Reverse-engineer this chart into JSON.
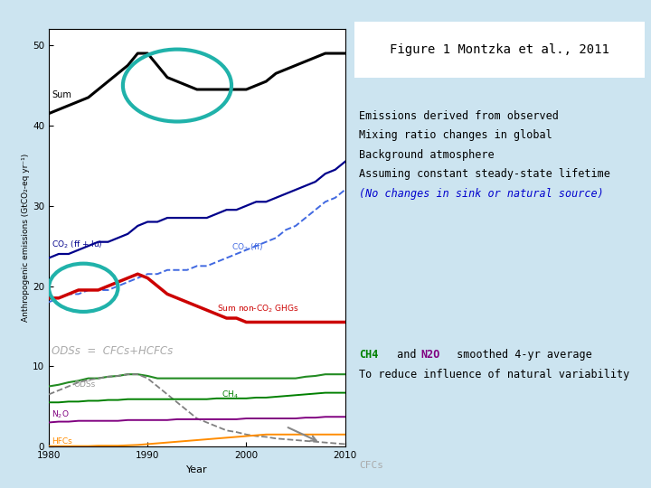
{
  "title": "Figure 1 Montzka et al., 2011",
  "bg_color": "#cce4f0",
  "plot_bg": "#ffffff",
  "years": [
    1980,
    1981,
    1982,
    1983,
    1984,
    1985,
    1986,
    1987,
    1988,
    1989,
    1990,
    1991,
    1992,
    1993,
    1994,
    1995,
    1996,
    1997,
    1998,
    1999,
    2000,
    2001,
    2002,
    2003,
    2004,
    2005,
    2006,
    2007,
    2008,
    2009,
    2010
  ],
  "sum_vals": [
    41.5,
    42.0,
    42.5,
    43.0,
    43.5,
    44.5,
    45.5,
    46.5,
    47.5,
    49.0,
    49.0,
    47.5,
    46.0,
    45.5,
    45.0,
    44.5,
    44.5,
    44.5,
    44.5,
    44.5,
    44.5,
    45.0,
    45.5,
    46.5,
    47.0,
    47.5,
    48.0,
    48.5,
    49.0,
    49.0,
    49.0
  ],
  "co2_ff_lu_vals": [
    23.5,
    24.0,
    24.0,
    24.5,
    25.0,
    25.5,
    25.5,
    26.0,
    26.5,
    27.5,
    28.0,
    28.0,
    28.5,
    28.5,
    28.5,
    28.5,
    28.5,
    29.0,
    29.5,
    29.5,
    30.0,
    30.5,
    30.5,
    31.0,
    31.5,
    32.0,
    32.5,
    33.0,
    34.0,
    34.5,
    35.5
  ],
  "co2_ff_vals": [
    18.0,
    18.5,
    19.0,
    19.0,
    19.5,
    19.5,
    19.5,
    20.0,
    20.5,
    21.0,
    21.5,
    21.5,
    22.0,
    22.0,
    22.0,
    22.5,
    22.5,
    23.0,
    23.5,
    24.0,
    24.5,
    25.0,
    25.5,
    26.0,
    27.0,
    27.5,
    28.5,
    29.5,
    30.5,
    31.0,
    32.0
  ],
  "sum_nonco2_vals": [
    18.5,
    18.5,
    19.0,
    19.5,
    19.5,
    19.5,
    20.0,
    20.5,
    21.0,
    21.5,
    21.0,
    20.0,
    19.0,
    18.5,
    18.0,
    17.5,
    17.0,
    16.5,
    16.0,
    16.0,
    15.5,
    15.5,
    15.5,
    15.5,
    15.5,
    15.5,
    15.5,
    15.5,
    15.5,
    15.5,
    15.5
  ],
  "ods_vals": [
    7.5,
    7.7,
    8.0,
    8.2,
    8.5,
    8.5,
    8.7,
    8.8,
    9.0,
    9.0,
    8.8,
    8.5,
    8.5,
    8.5,
    8.5,
    8.5,
    8.5,
    8.5,
    8.5,
    8.5,
    8.5,
    8.5,
    8.5,
    8.5,
    8.5,
    8.5,
    8.7,
    8.8,
    9.0,
    9.0,
    9.0
  ],
  "cfcs_vals": [
    6.5,
    7.0,
    7.5,
    8.0,
    8.3,
    8.5,
    8.7,
    8.8,
    9.0,
    9.0,
    8.5,
    7.5,
    6.5,
    5.5,
    4.5,
    3.5,
    3.0,
    2.5,
    2.0,
    1.8,
    1.5,
    1.3,
    1.2,
    1.0,
    0.9,
    0.8,
    0.7,
    0.6,
    0.5,
    0.4,
    0.3
  ],
  "ch4_vals": [
    5.5,
    5.5,
    5.6,
    5.6,
    5.7,
    5.7,
    5.8,
    5.8,
    5.9,
    5.9,
    5.9,
    5.9,
    5.9,
    5.9,
    5.9,
    5.9,
    5.9,
    6.0,
    6.0,
    6.0,
    6.0,
    6.1,
    6.1,
    6.2,
    6.3,
    6.4,
    6.5,
    6.6,
    6.7,
    6.7,
    6.7
  ],
  "n2o_vals": [
    3.0,
    3.1,
    3.1,
    3.2,
    3.2,
    3.2,
    3.2,
    3.2,
    3.3,
    3.3,
    3.3,
    3.3,
    3.3,
    3.4,
    3.4,
    3.4,
    3.4,
    3.4,
    3.4,
    3.4,
    3.5,
    3.5,
    3.5,
    3.5,
    3.5,
    3.5,
    3.6,
    3.6,
    3.7,
    3.7,
    3.7
  ],
  "hfcs_vals": [
    0.05,
    0.05,
    0.05,
    0.05,
    0.05,
    0.1,
    0.1,
    0.1,
    0.15,
    0.2,
    0.3,
    0.4,
    0.5,
    0.6,
    0.7,
    0.8,
    0.9,
    1.0,
    1.1,
    1.2,
    1.3,
    1.4,
    1.5,
    1.5,
    1.5,
    1.5,
    1.5,
    1.5,
    1.5,
    1.5,
    1.5
  ],
  "ylabel": "Anthropogenic emissions (GtCO₂-eq yr⁻¹)",
  "xlabel": "Year",
  "color_sum": "#000000",
  "color_co2_ff_lu": "#00008b",
  "color_co2_ff": "#4169e1",
  "color_nonco2": "#cc0000",
  "color_ods": "#228b22",
  "color_cfcs": "#808080",
  "color_ch4": "#008000",
  "color_n2o": "#800080",
  "color_hfcs": "#ff8c00",
  "color_teal": "#20b2aa",
  "text_blue_color": "#0000cd"
}
